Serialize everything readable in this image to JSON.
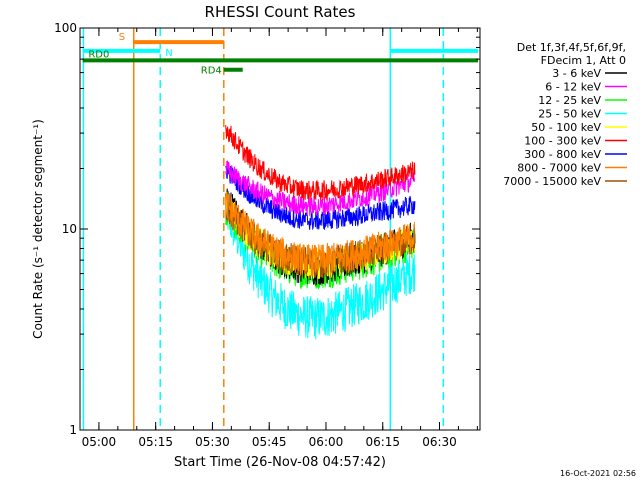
{
  "chart_data": {
    "type": "line",
    "title": "RHESSI Count Rates",
    "xlabel": "Start Time (26-Nov-08 04:57:42)",
    "ylabel": "Count Rate (s⁻¹ detector segment⁻¹)",
    "yscale": "log",
    "ylim": [
      1,
      100
    ],
    "xlim_minutes_after_start": [
      -2.7,
      103
    ],
    "x_ticks": [
      {
        "label": "05:00",
        "minute": 2.3
      },
      {
        "label": "05:15",
        "minute": 17.3
      },
      {
        "label": "05:30",
        "minute": 32.3
      },
      {
        "label": "05:45",
        "minute": 47.3
      },
      {
        "label": "06:00",
        "minute": 62.3
      },
      {
        "label": "06:15",
        "minute": 77.3
      },
      {
        "label": "06:30",
        "minute": 92.3
      }
    ],
    "y_ticks": [
      {
        "label": "1",
        "value": 1
      },
      {
        "label": "10",
        "value": 10
      },
      {
        "label": "100",
        "value": 100
      }
    ],
    "legend_header": [
      "Det 1f,3f,4f,5f,6f,9f,",
      "FDecim 1, Att 0"
    ],
    "series": [
      {
        "name": "3 - 6 keV",
        "color": "#000000",
        "start": 14.5,
        "min": 6.3,
        "end": 9.2
      },
      {
        "name": "6 - 12 keV",
        "color": "#ff00ff",
        "start": 20,
        "min": 13,
        "end": 17.5
      },
      {
        "name": "12 - 25 keV",
        "color": "#00ff00",
        "start": 12.5,
        "min": 6.0,
        "end": 8.5
      },
      {
        "name": "25 - 50 keV",
        "color": "#00ffff",
        "start": 12.5,
        "min": 3.6,
        "end": 6.3
      },
      {
        "name": "50 - 100 keV",
        "color": "#ffff00",
        "start": 13,
        "min": 6.7,
        "end": 9.0
      },
      {
        "name": "100 - 300 keV",
        "color": "#ff0000",
        "start": 32,
        "min": 15.5,
        "end": 19.5
      },
      {
        "name": "300 - 800 keV",
        "color": "#0000ff",
        "start": 20,
        "min": 11,
        "end": 13.2
      },
      {
        "name": "800 - 7000 keV",
        "color": "#ff8000",
        "start": 13.5,
        "min": 7.0,
        "end": 9.2
      },
      {
        "name": "7000 - 15000 keV",
        "color": "#a05000",
        "start": 13,
        "min": 6.8,
        "end": 9.0
      }
    ],
    "data_range_minutes": [
      35.8,
      85.8
    ],
    "minimum_at_minute": 60,
    "segments": [
      {
        "label": "S",
        "color": "#ff8000",
        "x0": 11.5,
        "x1": 35.3,
        "y": 85
      },
      {
        "label": "N",
        "color": "#00ffff",
        "x0": -2.0,
        "x1": 18.5,
        "y": 77
      },
      {
        "label": "",
        "color": "#00ffff",
        "x0": 79.3,
        "x1": 102.5,
        "y": 77
      },
      {
        "label": "RD4",
        "color": "#008000",
        "x0": 35.3,
        "x1": 40.3,
        "y": 62
      },
      {
        "label": "RD0",
        "color": "#008000",
        "x0": -2.0,
        "x1": 102.5,
        "y": 69
      }
    ],
    "vlines": [
      {
        "minute": -1.8,
        "color": "#00ffff",
        "style": "solid"
      },
      {
        "minute": 11.5,
        "color": "#ff8000",
        "style": "solid"
      },
      {
        "minute": 18.5,
        "color": "#00ffff",
        "style": "dashed"
      },
      {
        "minute": 35.3,
        "color": "#ff8000",
        "style": "dashed"
      },
      {
        "minute": 79.3,
        "color": "#00ffff",
        "style": "solid"
      },
      {
        "minute": 93.3,
        "color": "#00ffff",
        "style": "dashed"
      }
    ]
  },
  "footer": {
    "date_stamp": "16-Oct-2021 02:56"
  }
}
